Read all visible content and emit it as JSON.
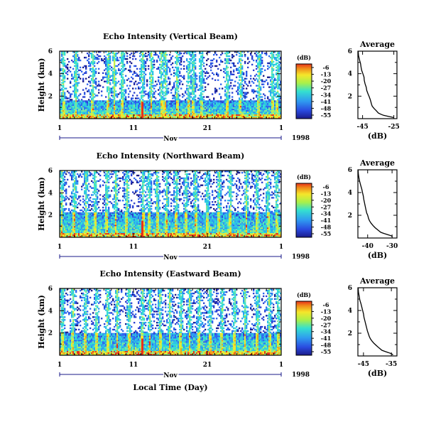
{
  "figure": {
    "bottom_xlabel": "Local Time (Day)",
    "month_label": "Nov",
    "year_label": "1998"
  },
  "chart_data": [
    {
      "type": "heatmap",
      "id": "vertical",
      "title": "Echo Intensity (Vertical Beam)",
      "ylabel": "Height (km)",
      "xlabel": "",
      "x_ticks": [
        "1",
        "11",
        "21",
        "1"
      ],
      "y_ticks": [
        "6",
        "4",
        "2"
      ],
      "xlim_days": [
        1,
        31
      ],
      "ylim_km": [
        0,
        6
      ],
      "colorbar": {
        "unit": "(dB)",
        "ticks": [
          "-6",
          "-13",
          "-20",
          "-27",
          "-34",
          "-41",
          "-48",
          "-55"
        ]
      },
      "threshold_height_km": 1.6,
      "intense_columns_days": [
        1.5,
        3.2,
        5.5,
        7.6,
        8.4,
        9.5,
        12.2,
        13.4,
        14.8,
        15.3,
        16.9,
        18.5,
        19.1,
        20.2,
        23.7,
        25.5,
        28.0,
        29.8,
        30.5
      ]
    },
    {
      "type": "line",
      "id": "vertical-avg",
      "title": "Average",
      "xlabel": "(dB)",
      "x_ticks": [
        "-45",
        "-25"
      ],
      "y_ticks": [
        "6",
        "4",
        "2"
      ],
      "xlim": [
        -48,
        -23
      ],
      "ylim": [
        0,
        6
      ],
      "x": [
        -47.8,
        -47.6,
        -46.9,
        -46.3,
        -46.0,
        -45.6,
        -44.8,
        -44.1,
        -43.9,
        -43.4,
        -42.7,
        -42.3,
        -41.5,
        -40.9,
        -40.1,
        -39.7,
        -39.3,
        -38.8,
        -37.6,
        -36.2,
        -34.9,
        -33.4,
        -31.6,
        -28.6,
        -25.2
      ],
      "y": [
        6.0,
        5.6,
        5.2,
        4.9,
        4.6,
        4.3,
        4.0,
        3.7,
        3.4,
        3.1,
        2.8,
        2.5,
        2.2,
        2.0,
        1.7,
        1.5,
        1.3,
        1.1,
        0.9,
        0.7,
        0.5,
        0.4,
        0.3,
        0.2,
        0.1
      ]
    },
    {
      "type": "heatmap",
      "id": "northward",
      "title": "Echo Intensity (Northward Beam)",
      "ylabel": "Height (km)",
      "xlabel": "",
      "x_ticks": [
        "1",
        "11",
        "21",
        "1"
      ],
      "y_ticks": [
        "6",
        "4",
        "2"
      ],
      "xlim_days": [
        1,
        31
      ],
      "ylim_km": [
        0,
        6
      ],
      "colorbar": {
        "unit": "(dB)",
        "ticks": [
          "-6",
          "-13",
          "-20",
          "-27",
          "-34",
          "-41",
          "-48",
          "-55"
        ]
      },
      "threshold_height_km": 2.2,
      "intense_columns_days": [
        1.3,
        3.0,
        4.6,
        5.8,
        7.4,
        8.6,
        10.1,
        12.3,
        13.1,
        14.2,
        15.5,
        16.8,
        18.1,
        19.4,
        21.0,
        22.6,
        24.1,
        26.3,
        27.7,
        29.2,
        30.4
      ]
    },
    {
      "type": "line",
      "id": "northward-avg",
      "title": "Average",
      "xlabel": "(dB)",
      "x_ticks": [
        "-40",
        "-30"
      ],
      "y_ticks": [
        "6",
        "4",
        "2"
      ],
      "xlim": [
        -44,
        -28
      ],
      "ylim": [
        0,
        6
      ],
      "x": [
        -43.9,
        -43.8,
        -43.5,
        -43.2,
        -42.8,
        -42.4,
        -42.1,
        -41.8,
        -41.6,
        -41.3,
        -41.0,
        -40.7,
        -40.4,
        -40.0,
        -39.6,
        -39.2,
        -38.6,
        -37.8,
        -36.9,
        -35.8,
        -34.6,
        -33.3,
        -31.8,
        -30.4,
        -29.8
      ],
      "y": [
        6.0,
        5.6,
        5.2,
        4.9,
        4.6,
        4.3,
        4.0,
        3.7,
        3.4,
        3.1,
        2.8,
        2.5,
        2.2,
        2.0,
        1.7,
        1.5,
        1.3,
        1.1,
        0.9,
        0.7,
        0.5,
        0.4,
        0.3,
        0.2,
        0.1
      ]
    },
    {
      "type": "heatmap",
      "id": "eastward",
      "title": "Echo Intensity (Eastward Beam)",
      "ylabel": "Height (km)",
      "xlabel": "Local Time (Day)",
      "x_ticks": [
        "1",
        "11",
        "21",
        "1"
      ],
      "y_ticks": [
        "6",
        "4",
        "2"
      ],
      "xlim_days": [
        1,
        31
      ],
      "ylim_km": [
        0,
        6
      ],
      "colorbar": {
        "unit": "(dB)",
        "ticks": [
          "-6",
          "-13",
          "-20",
          "-27",
          "-34",
          "-41",
          "-48",
          "-55"
        ]
      },
      "threshold_height_km": 2.0,
      "intense_columns_days": [
        1.4,
        2.8,
        4.5,
        6.0,
        7.5,
        8.8,
        10.4,
        12.2,
        13.2,
        14.6,
        15.9,
        17.4,
        18.6,
        19.9,
        21.4,
        23.0,
        24.7,
        26.1,
        27.8,
        29.4,
        30.6
      ]
    },
    {
      "type": "line",
      "id": "eastward-avg",
      "title": "Average",
      "xlabel": "(dB)",
      "x_ticks": [
        "-45",
        "-35"
      ],
      "y_ticks": [
        "6",
        "4",
        "2"
      ],
      "xlim": [
        -47,
        -33
      ],
      "ylim": [
        0,
        6
      ],
      "x": [
        -46.9,
        -46.8,
        -46.5,
        -46.3,
        -45.9,
        -45.6,
        -45.3,
        -45.0,
        -44.8,
        -44.5,
        -44.2,
        -43.9,
        -43.6,
        -43.3,
        -42.9,
        -42.5,
        -41.9,
        -41.2,
        -40.3,
        -39.4,
        -38.4,
        -37.3,
        -36.1,
        -35.0,
        -34.4
      ],
      "y": [
        6.0,
        5.6,
        5.2,
        4.9,
        4.6,
        4.3,
        4.0,
        3.7,
        3.4,
        3.1,
        2.8,
        2.5,
        2.2,
        2.0,
        1.7,
        1.5,
        1.3,
        1.1,
        0.9,
        0.7,
        0.5,
        0.4,
        0.3,
        0.2,
        0.1
      ]
    }
  ]
}
